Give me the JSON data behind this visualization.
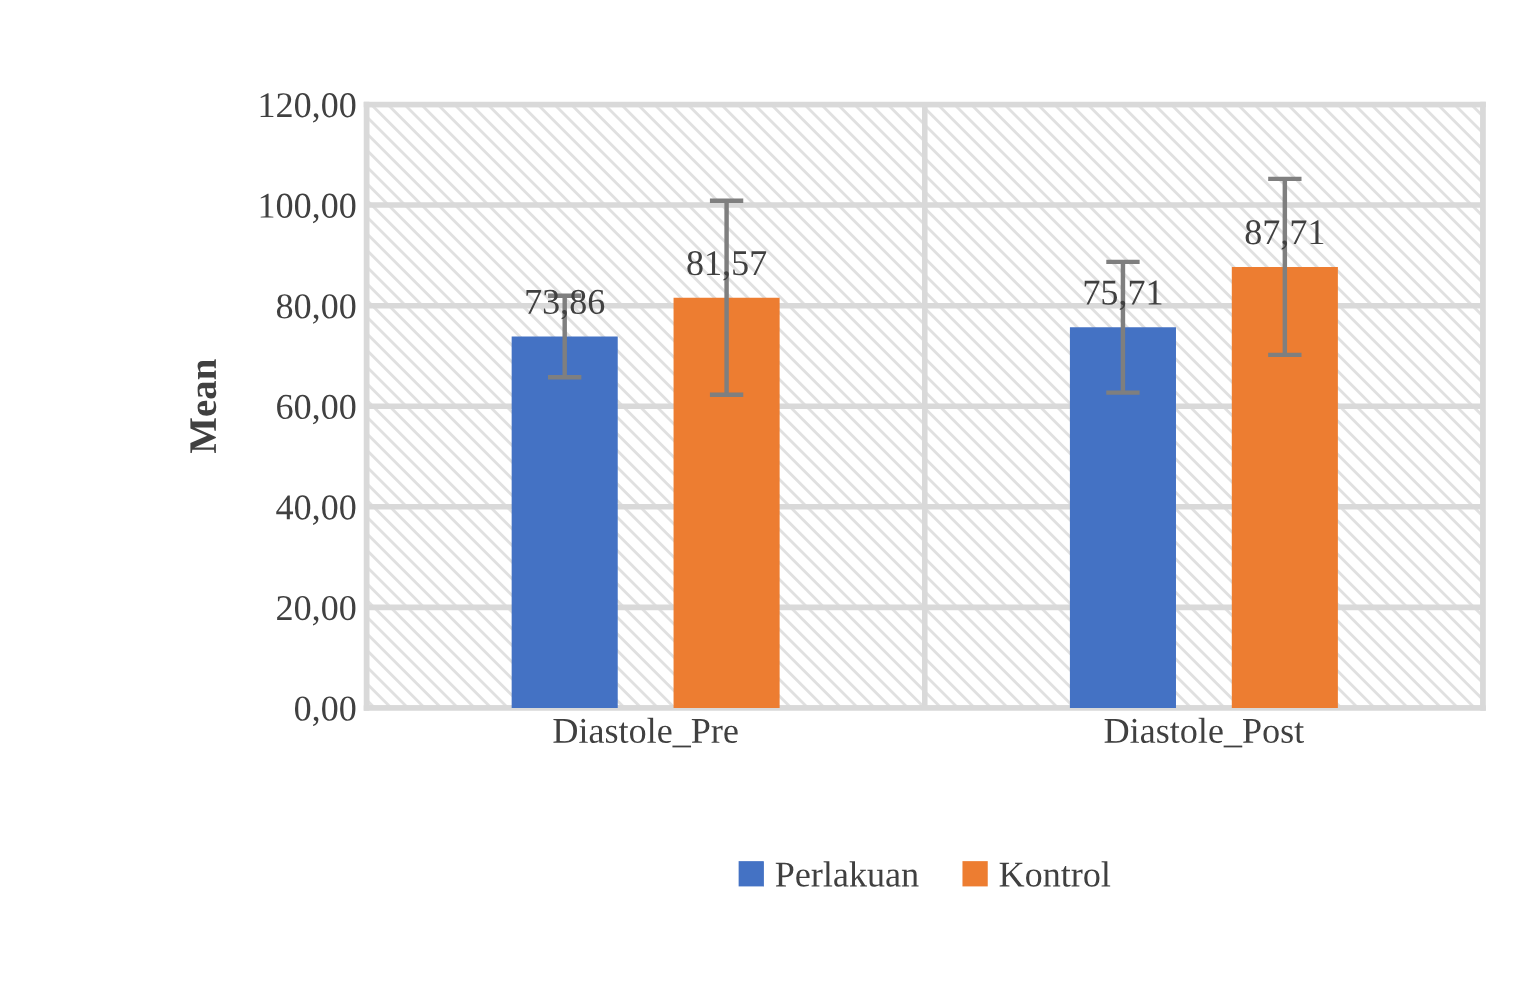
{
  "chart_data": {
    "type": "bar",
    "ylabel": "Mean",
    "categories": [
      "Diastole_Pre",
      "Diastole_Post"
    ],
    "series": [
      {
        "name": "Perlakuan",
        "color": "#4472c4",
        "values": [
          73.86,
          75.71
        ],
        "errors": [
          8.1,
          13.0
        ],
        "value_labels": [
          "73,86",
          "75,71"
        ]
      },
      {
        "name": "Kontrol",
        "color": "#ed7d31",
        "values": [
          81.57,
          87.71
        ],
        "errors": [
          19.3,
          17.5
        ],
        "value_labels": [
          "81,57",
          "87,71"
        ]
      }
    ],
    "ylim": [
      0,
      120
    ],
    "yticks": [
      {
        "value": 0,
        "label": "0,00"
      },
      {
        "value": 20,
        "label": "20,00"
      },
      {
        "value": 40,
        "label": "40,00"
      },
      {
        "value": 60,
        "label": "60,00"
      },
      {
        "value": 80,
        "label": "80,00"
      },
      {
        "value": 100,
        "label": "100,00"
      },
      {
        "value": 120,
        "label": "120,00"
      }
    ],
    "grid": true,
    "legend": "bottom"
  }
}
